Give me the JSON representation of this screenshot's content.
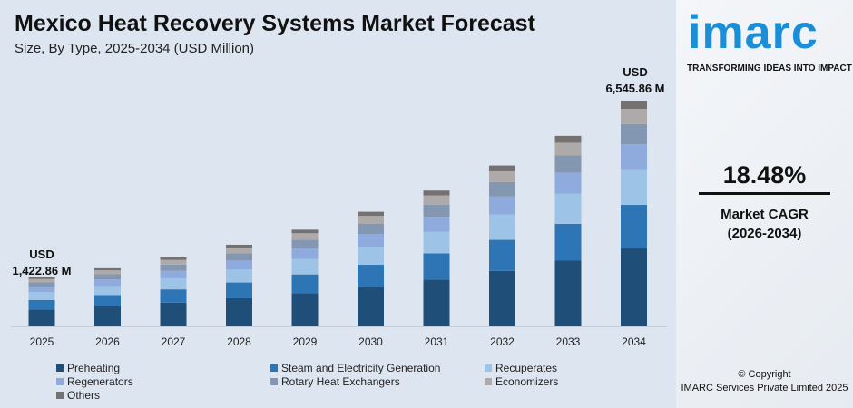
{
  "title": "Mexico Heat Recovery Systems Market Forecast",
  "subtitle": "Size, By Type, 2025-2034 (USD Million)",
  "brand": {
    "logo": "imarc",
    "tagline": "TRANSFORMING IDEAS INTO IMPACT",
    "color": "#1a8fd8"
  },
  "cagr": {
    "value": "18.48%",
    "label": "Market CAGR",
    "period": "(2026-2034)"
  },
  "copyright": {
    "line1": "© Copyright",
    "line2": "IMARC Services Private Limited 2025"
  },
  "annotations": {
    "first": {
      "line1": "USD",
      "line2": "1,422.86 M"
    },
    "last": {
      "line1": "USD",
      "line2": "6,545.86 M"
    }
  },
  "chart_data": {
    "type": "bar",
    "stacked": true,
    "title": "Mexico Heat Recovery Systems Market Forecast",
    "subtitle": "Size, By Type, 2025-2034 (USD Million)",
    "categories": [
      "2025",
      "2026",
      "2027",
      "2028",
      "2029",
      "2030",
      "2031",
      "2032",
      "2033",
      "2034"
    ],
    "totals": [
      1422.86,
      1685.8,
      1997.3,
      2366.4,
      2803.7,
      3321.8,
      3935.7,
      4663.0,
      5524.7,
      6545.86
    ],
    "legend_position": "bottom",
    "grid": false,
    "series": [
      {
        "name": "Preheating",
        "color": "#1f4e79",
        "values": [
          491,
          582,
          689,
          816,
          967,
          1146,
          1358,
          1609,
          1906,
          2260
        ]
      },
      {
        "name": "Steam and Electricity Generation",
        "color": "#2e75b6",
        "values": [
          275,
          325,
          385,
          457,
          541,
          641,
          760,
          900,
          1066,
          1262
        ]
      },
      {
        "name": "Recuperates",
        "color": "#9dc3e6",
        "values": [
          225,
          266,
          316,
          374,
          443,
          525,
          622,
          737,
          873,
          1033
        ]
      },
      {
        "name": "Regenerators",
        "color": "#8faadc",
        "values": [
          158,
          187,
          222,
          263,
          311,
          369,
          437,
          518,
          613,
          728
        ]
      },
      {
        "name": "Rotary Heat Exchangers",
        "color": "#8497b0",
        "values": [
          128,
          152,
          180,
          213,
          252,
          299,
          354,
          420,
          497,
          586
        ]
      },
      {
        "name": "Economizers",
        "color": "#aeaaaa",
        "values": [
          95,
          113,
          134,
          159,
          188,
          223,
          264,
          312,
          370,
          438
        ]
      },
      {
        "name": "Others",
        "color": "#767171",
        "values": [
          51,
          61,
          72,
          85,
          101,
          120,
          142,
          168,
          199,
          238
        ]
      }
    ]
  }
}
